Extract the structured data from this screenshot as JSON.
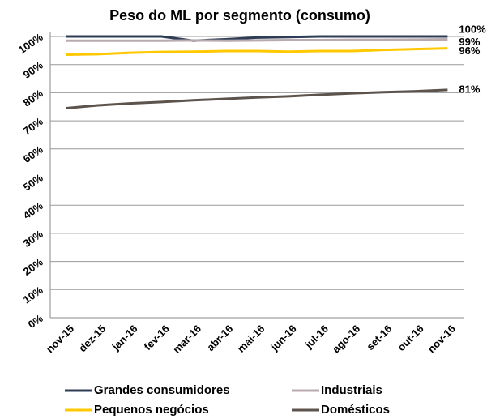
{
  "chart_data": {
    "type": "line",
    "title": "Peso do ML por segmento (consumo)",
    "categories": [
      "nov-15",
      "dez-15",
      "jan-16",
      "fev-16",
      "mar-16",
      "abr-16",
      "mai-16",
      "jun-16",
      "jul-16",
      "ago-16",
      "set-16",
      "out-16",
      "nov-16"
    ],
    "series": [
      {
        "name": "Grandes consumidores",
        "color": "#2e3d55",
        "values": [
          100,
          100,
          100,
          100,
          98.5,
          99,
          99.6,
          99.8,
          100,
          100,
          100,
          100,
          100
        ],
        "value_labels": [
          null,
          null,
          null,
          null,
          null,
          null,
          null,
          null,
          null,
          null,
          null,
          null,
          "100%"
        ]
      },
      {
        "name": "Industriais",
        "color": "#b8aab0",
        "values": [
          98.5,
          98.5,
          98.5,
          98.5,
          98.6,
          98.5,
          98.6,
          98.7,
          98.7,
          98.8,
          98.8,
          98.9,
          99
        ],
        "value_labels": [
          null,
          null,
          null,
          null,
          null,
          null,
          null,
          null,
          null,
          null,
          null,
          null,
          "99%"
        ]
      },
      {
        "name": "Pequenos negócios",
        "color": "#ffc800",
        "values": [
          93.5,
          93.7,
          94.2,
          94.5,
          94.6,
          94.8,
          94.8,
          94.6,
          94.8,
          94.8,
          95.2,
          95.5,
          95.8
        ],
        "value_labels": [
          null,
          null,
          null,
          null,
          null,
          null,
          null,
          null,
          null,
          null,
          null,
          null,
          "96%"
        ]
      },
      {
        "name": "Domésticos",
        "color": "#5c534d",
        "values": [
          74.5,
          75.5,
          76.2,
          76.7,
          77.3,
          77.8,
          78.3,
          78.7,
          79.3,
          79.8,
          80.2,
          80.5,
          81
        ],
        "value_labels": [
          null,
          null,
          null,
          null,
          null,
          null,
          null,
          null,
          null,
          null,
          null,
          null,
          "81%"
        ]
      }
    ],
    "ylim": [
      0,
      100
    ],
    "yticks": [
      {
        "value": 0,
        "label": "0%"
      },
      {
        "value": 10,
        "label": "10%"
      },
      {
        "value": 20,
        "label": "20%"
      },
      {
        "value": 30,
        "label": "30%"
      },
      {
        "value": 40,
        "label": "40%"
      },
      {
        "value": 50,
        "label": "50%"
      },
      {
        "value": 60,
        "label": "60%"
      },
      {
        "value": 70,
        "label": "70%"
      },
      {
        "value": 80,
        "label": "80%"
      },
      {
        "value": 90,
        "label": "90%"
      },
      {
        "value": 100,
        "label": "100%"
      }
    ],
    "grid": true
  }
}
